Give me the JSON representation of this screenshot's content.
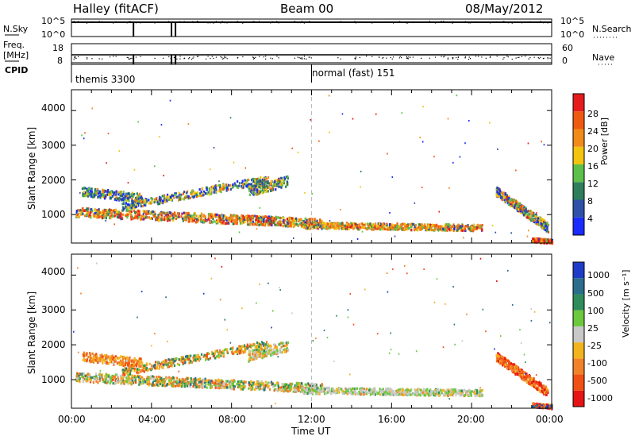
{
  "header": {
    "station": "Halley (fitACF)",
    "beam": "Beam 00",
    "date": "08/May/2012"
  },
  "left_labels": {
    "nsky": "N.Sky",
    "freq_line1": "Freq.",
    "freq_line2": "[MHz]",
    "cpid": "CPID"
  },
  "right_labels": {
    "nsearch": "N.Search",
    "nave": "Nave"
  },
  "cpid_entries": [
    "themis 3300",
    "normal (fast) 151"
  ],
  "chart_data": [
    {
      "type": "line",
      "name": "noise-panel",
      "left_axis": {
        "label": "N.Sky",
        "ticks": [
          "10^5",
          "10^0"
        ]
      },
      "right_axis": {
        "label": "N.Search",
        "ticks": [
          "10^5",
          "10^0"
        ]
      },
      "x_range_hours": [
        0,
        24
      ],
      "dropouts_hours": [
        3.1,
        5.0,
        5.2
      ]
    },
    {
      "type": "line",
      "name": "frequency-panel",
      "left_axis": {
        "label": "Freq. [MHz]",
        "ticks": [
          "18",
          "8"
        ]
      },
      "right_axis": {
        "label": "Nave",
        "ticks": [
          "60",
          "0"
        ]
      },
      "x_range_hours": [
        0,
        24
      ],
      "dropouts_hours": [
        3.1,
        5.0,
        5.2
      ]
    },
    {
      "type": "heatmap",
      "name": "power-panel",
      "ylabel": "Slant Range [km]",
      "yticks": [
        1000,
        2000,
        3000,
        4000
      ],
      "ylim": [
        180,
        4600
      ],
      "x_range_hours": [
        0,
        24
      ],
      "colorbar": {
        "label": "Power [dB]",
        "ticks": [
          "4",
          "8",
          "12",
          "16",
          "20",
          "24",
          "28"
        ],
        "colors": [
          "#1a2bff",
          "#2f4fa8",
          "#2e7d5b",
          "#5cbf4a",
          "#f2c40f",
          "#f28a1a",
          "#ef5a10",
          "#e61c1c"
        ]
      }
    },
    {
      "type": "heatmap",
      "name": "velocity-panel",
      "ylabel": "Slant Range [km]",
      "yticks": [
        1000,
        2000,
        3000,
        4000
      ],
      "ylim": [
        180,
        4600
      ],
      "x_range_hours": [
        0,
        24
      ],
      "xlabel": "Time UT",
      "xticks": [
        "00:00",
        "04:00",
        "08:00",
        "12:00",
        "16:00",
        "20:00",
        "00:00"
      ],
      "colorbar": {
        "label": "Velocity [m s⁻¹]",
        "ticks": [
          "1000",
          "500",
          "100",
          "25",
          "-25",
          "-100",
          "-500",
          "-1000"
        ],
        "colors": [
          "#1e3cc8",
          "#2a6e8c",
          "#2f8c5a",
          "#6cc83c",
          "#c8c8c8",
          "#f2b41e",
          "#f28228",
          "#f05014",
          "#e61414"
        ]
      },
      "ground_scatter_color": "#c8c8c8"
    }
  ]
}
